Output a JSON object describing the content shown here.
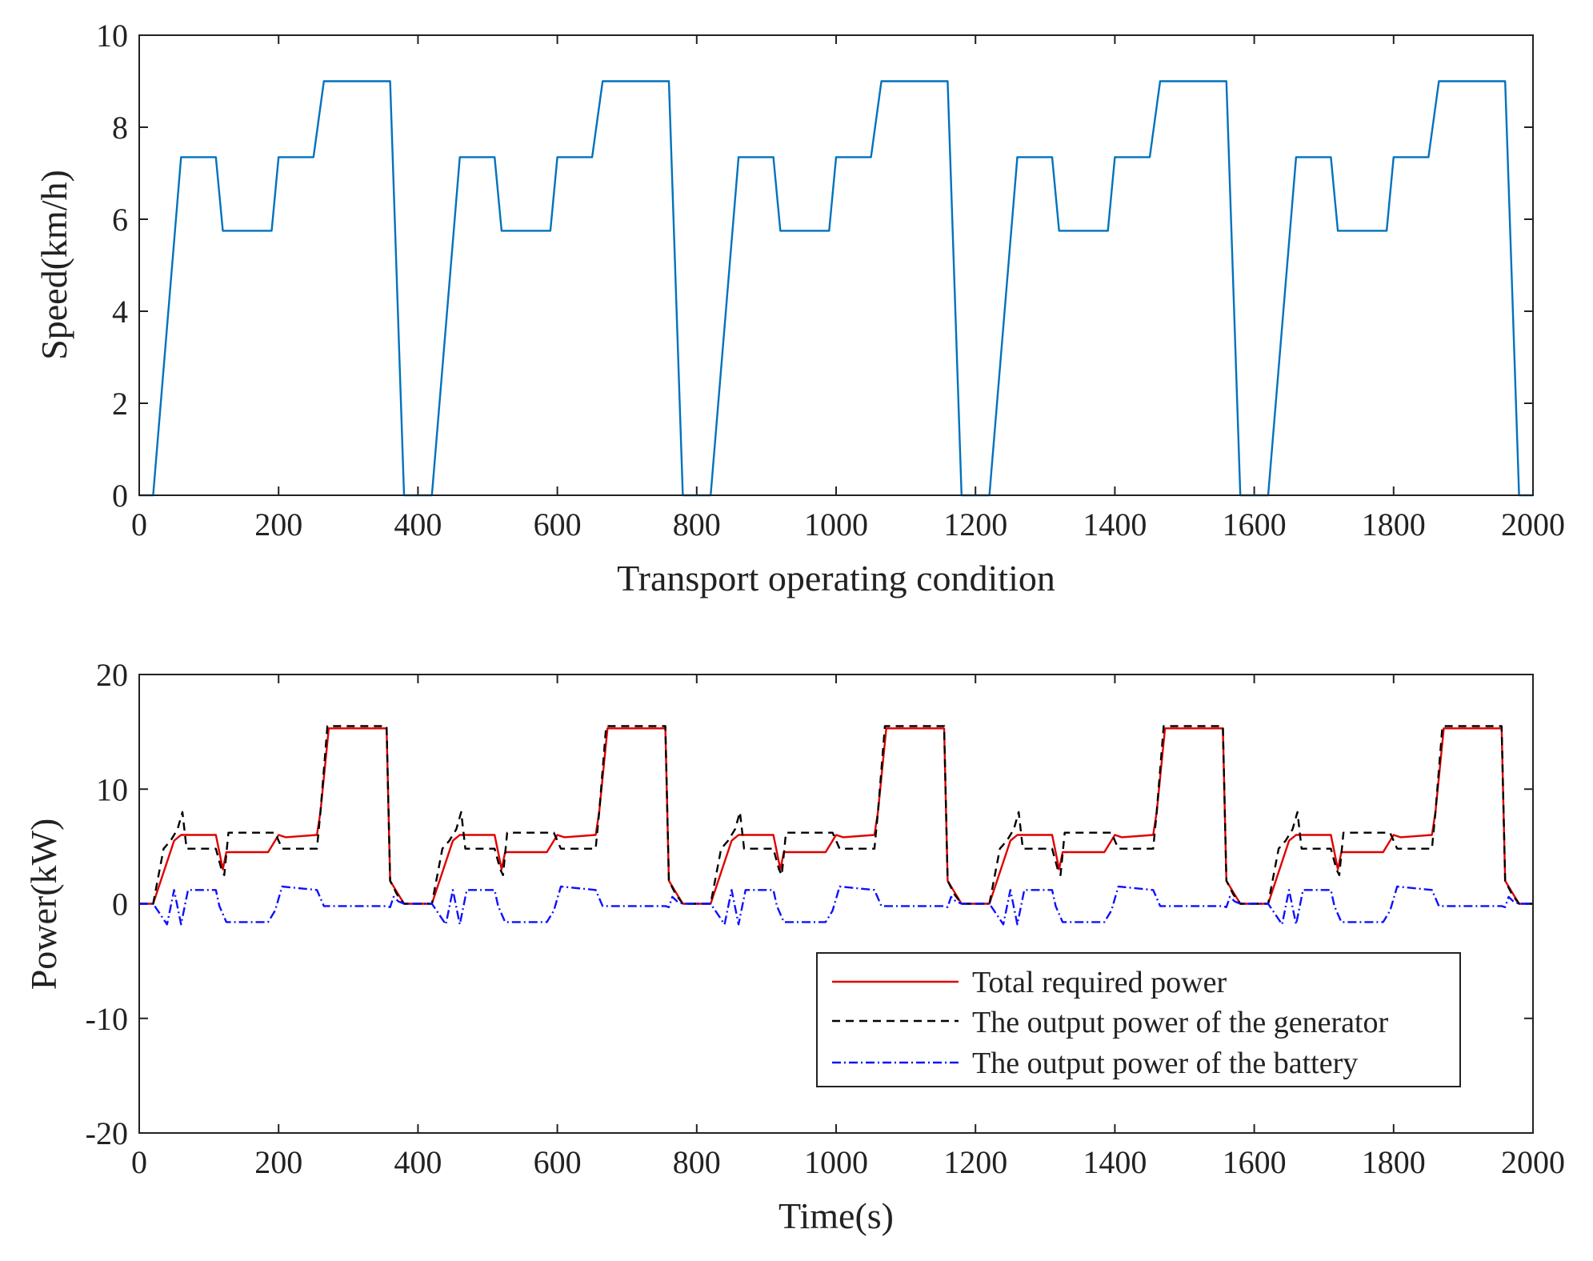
{
  "colors": {
    "speed": "#0072BD",
    "total": "#e00000",
    "generator": "#000000",
    "battery": "#1010ff",
    "axis": "#222222"
  },
  "chart_data": [
    {
      "type": "line",
      "xlabel": "Transport operating condition",
      "ylabel": "Speed(km/h)",
      "xlim": [
        0,
        2000
      ],
      "ylim": [
        0,
        10
      ],
      "xticks": [
        0,
        200,
        400,
        600,
        800,
        1000,
        1200,
        1400,
        1600,
        1800,
        2000
      ],
      "yticks": [
        0,
        2,
        4,
        6,
        8,
        10
      ],
      "xtick_labels": [
        "0",
        "200",
        "400",
        "600",
        "800",
        "1000",
        "1200",
        "1400",
        "1600",
        "1800",
        "2000"
      ],
      "ytick_labels": [
        "0",
        "2",
        "4",
        "6",
        "8",
        "10"
      ],
      "grid": false,
      "cycle_period": 400,
      "cycles": 5,
      "series": [
        {
          "name": "Speed",
          "color_key": "speed",
          "dash": "solid",
          "cycle_x": [
            0,
            20,
            60,
            110,
            120,
            190,
            200,
            250,
            265,
            360,
            380,
            400
          ],
          "cycle_y": [
            0,
            0,
            7.35,
            7.35,
            5.75,
            5.75,
            7.35,
            7.35,
            9.0,
            9.0,
            0,
            0
          ]
        }
      ]
    },
    {
      "type": "line",
      "xlabel": "Time(s)",
      "ylabel": "Power(kW)",
      "xlim": [
        0,
        2000
      ],
      "ylim": [
        -20,
        20
      ],
      "xticks": [
        0,
        200,
        400,
        600,
        800,
        1000,
        1200,
        1400,
        1600,
        1800,
        2000
      ],
      "yticks": [
        -20,
        -10,
        0,
        10,
        20
      ],
      "xtick_labels": [
        "0",
        "200",
        "400",
        "600",
        "800",
        "1000",
        "1200",
        "1400",
        "1600",
        "1800",
        "2000"
      ],
      "ytick_labels": [
        "-20",
        "-10",
        "0",
        "10",
        "20"
      ],
      "grid": false,
      "legend_position": "bottom-right",
      "cycle_period": 400,
      "cycles": 5,
      "series": [
        {
          "name": "Total required power",
          "color_key": "total",
          "dash": "solid",
          "cycle_x": [
            0,
            20,
            50,
            60,
            110,
            115,
            120,
            125,
            185,
            200,
            210,
            255,
            260,
            272,
            355,
            360,
            370,
            380,
            400
          ],
          "cycle_y": [
            0,
            0,
            5.5,
            6.0,
            6.0,
            4.5,
            3.0,
            4.5,
            4.5,
            6.0,
            5.8,
            6.0,
            8.0,
            15.3,
            15.3,
            2.0,
            1.0,
            0,
            0
          ]
        },
        {
          "name": "The output power of the generator",
          "color_key": "generator",
          "dash": "dashed",
          "cycle_x": [
            0,
            20,
            35,
            45,
            55,
            62,
            68,
            110,
            118,
            122,
            128,
            195,
            205,
            255,
            260,
            270,
            355,
            360,
            370,
            380,
            400
          ],
          "cycle_y": [
            0,
            0,
            4.8,
            5.5,
            6.5,
            8.0,
            4.8,
            4.8,
            3.0,
            2.5,
            6.2,
            6.2,
            4.8,
            4.8,
            8.0,
            15.5,
            15.5,
            2.0,
            0.8,
            0,
            0
          ]
        },
        {
          "name": "The output power of the battery",
          "color_key": "battery",
          "dash": "dashdot",
          "cycle_x": [
            0,
            20,
            40,
            50,
            60,
            70,
            110,
            115,
            125,
            185,
            195,
            205,
            255,
            265,
            355,
            360,
            365,
            372,
            380,
            400
          ],
          "cycle_y": [
            0,
            0,
            -1.8,
            1.2,
            -1.8,
            1.2,
            1.2,
            -0.2,
            -1.6,
            -1.6,
            -0.6,
            1.5,
            1.2,
            -0.2,
            -0.2,
            -0.3,
            0.6,
            0.2,
            0,
            0
          ]
        }
      ]
    }
  ]
}
